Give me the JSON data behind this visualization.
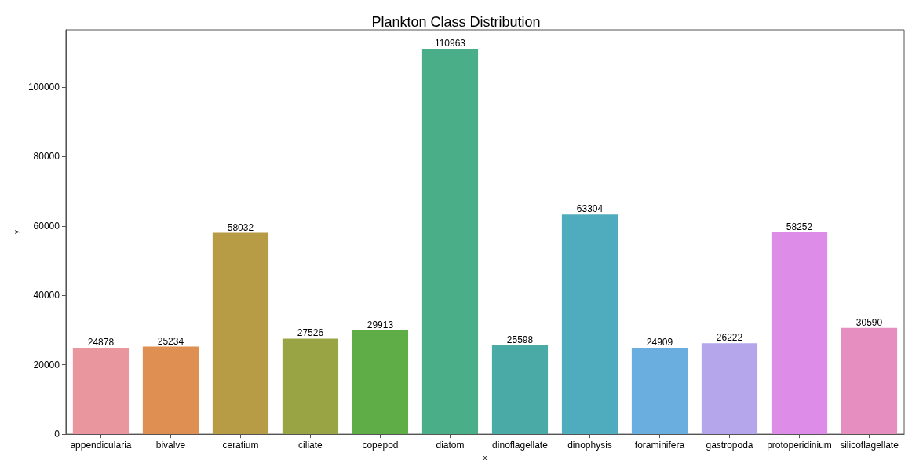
{
  "chart_data": {
    "type": "bar",
    "title": "Plankton Class Distribution",
    "xlabel": "x",
    "ylabel": "y",
    "categories": [
      "appendicularia",
      "bivalve",
      "ceratium",
      "ciliate",
      "copepod",
      "diatom",
      "dinoflagellate",
      "dinophysis",
      "foraminifera",
      "gastropoda",
      "protoperidinium",
      "silicoflagellate"
    ],
    "values": [
      24878,
      25234,
      58032,
      27526,
      29913,
      110963,
      25598,
      63304,
      24909,
      26222,
      58252,
      30590
    ],
    "colors": [
      "#e9969f",
      "#e08f53",
      "#b89c45",
      "#99a445",
      "#5fad47",
      "#4aae89",
      "#4aaba6",
      "#4facbe",
      "#6aaee0",
      "#b5a5eb",
      "#dd8de8",
      "#e78ec1"
    ],
    "ylim": [
      0,
      116500
    ],
    "yticks": [
      0,
      20000,
      40000,
      60000,
      80000,
      100000
    ],
    "data_labels": true,
    "grid": false
  }
}
